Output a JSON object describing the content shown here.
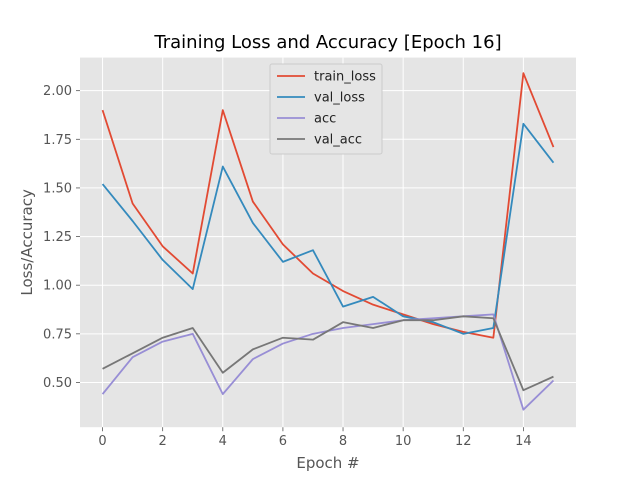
{
  "chart_data": {
    "type": "line",
    "title": "Training Loss and Accuracy [Epoch 16]",
    "xlabel": "Epoch #",
    "ylabel": "Loss/Accuracy",
    "x": [
      0,
      1,
      2,
      3,
      4,
      5,
      6,
      7,
      8,
      9,
      10,
      11,
      12,
      13,
      14,
      15
    ],
    "xlim": [
      -0.75,
      15.75
    ],
    "ylim": [
      0.27,
      2.17
    ],
    "xticks": [
      0,
      2,
      4,
      6,
      8,
      10,
      12,
      14
    ],
    "yticks": [
      0.5,
      0.75,
      1.0,
      1.25,
      1.5,
      1.75,
      2.0
    ],
    "ytick_labels": [
      "0.50",
      "0.75",
      "1.00",
      "1.25",
      "1.50",
      "1.75",
      "2.00"
    ],
    "grid": true,
    "legend_position": "top-center",
    "series": [
      {
        "name": "train_loss",
        "color": "#E24A33",
        "values": [
          1.9,
          1.42,
          1.2,
          1.06,
          1.9,
          1.43,
          1.21,
          1.06,
          0.97,
          0.9,
          0.85,
          0.8,
          0.76,
          0.73,
          2.09,
          1.71
        ]
      },
      {
        "name": "val_loss",
        "color": "#348ABD",
        "values": [
          1.52,
          1.33,
          1.13,
          0.98,
          1.61,
          1.32,
          1.12,
          1.18,
          0.89,
          0.94,
          0.84,
          0.81,
          0.75,
          0.78,
          1.83,
          1.63
        ]
      },
      {
        "name": "acc",
        "color": "#988ED5",
        "values": [
          0.44,
          0.63,
          0.71,
          0.75,
          0.44,
          0.62,
          0.7,
          0.75,
          0.78,
          0.8,
          0.82,
          0.83,
          0.84,
          0.85,
          0.36,
          0.51
        ]
      },
      {
        "name": "val_acc",
        "color": "#777777",
        "values": [
          0.57,
          0.65,
          0.73,
          0.78,
          0.55,
          0.67,
          0.73,
          0.72,
          0.81,
          0.78,
          0.82,
          0.82,
          0.84,
          0.83,
          0.46,
          0.53
        ]
      }
    ]
  }
}
